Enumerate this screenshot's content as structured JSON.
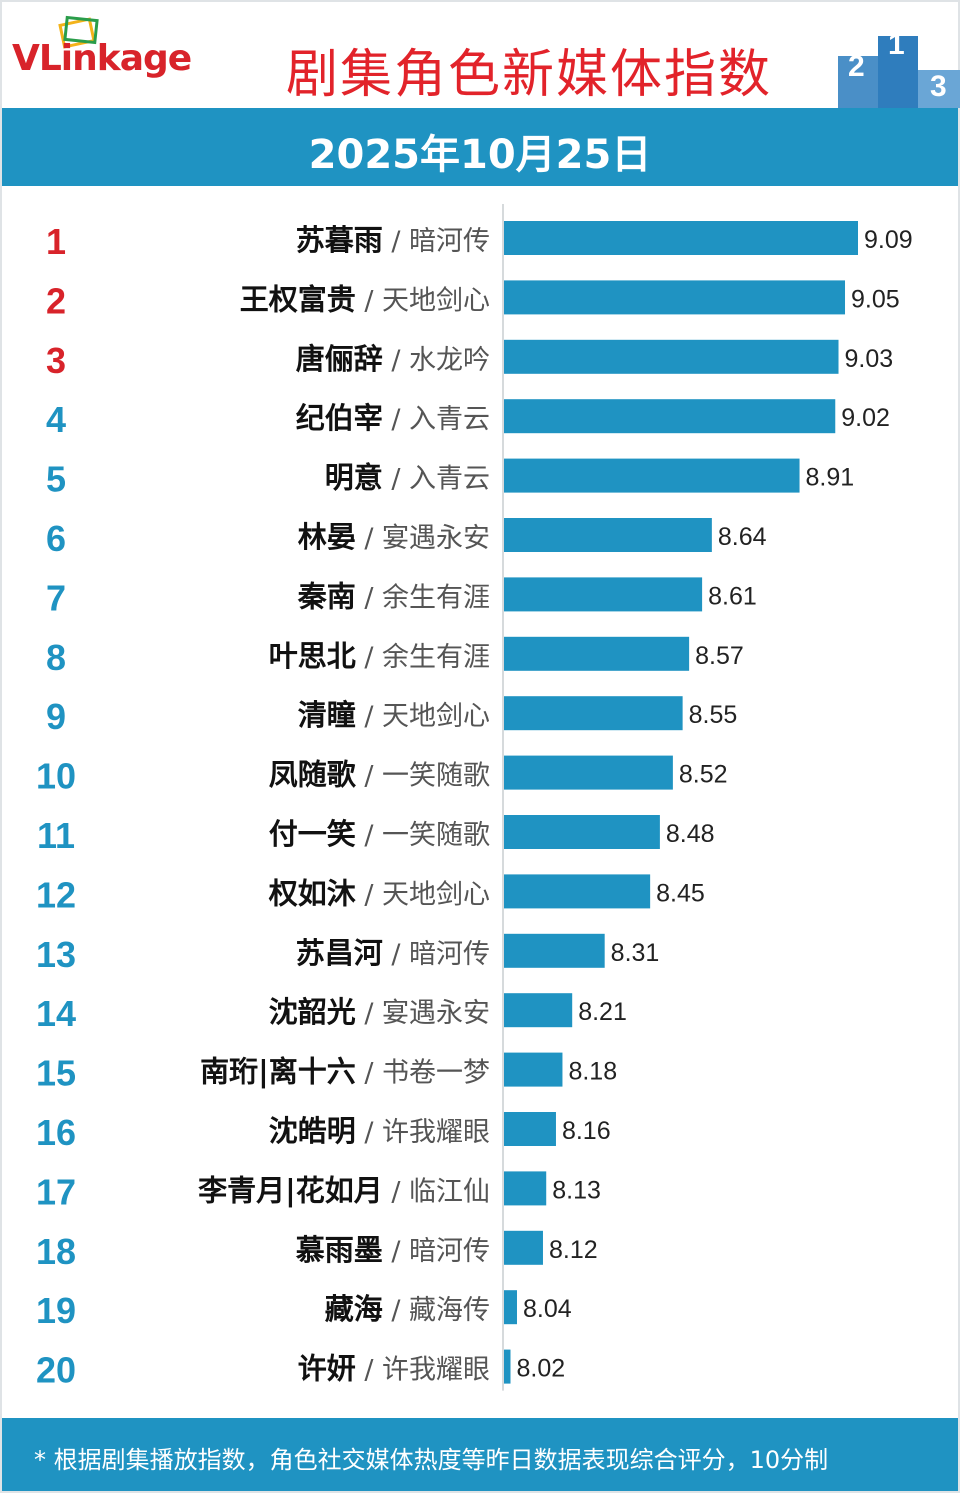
{
  "header": {
    "logo": "VLinkage",
    "title": "剧集角色新媒体指数",
    "date": "2025年10月25日"
  },
  "footer": {
    "note": "* 根据剧集播放指数，角色社交媒体热度等昨日数据表现综合评分，10分制"
  },
  "colors": {
    "bar": "#1f93c2",
    "rank_top3": "#d8232a",
    "rank_rest": "#1f93c2",
    "title": "#e2232a"
  },
  "chart_data": {
    "type": "bar",
    "orientation": "horizontal",
    "xlim": [
      8.0,
      9.15
    ],
    "grid": false,
    "rows": [
      {
        "rank": "1",
        "name": "苏暮雨",
        "drama": "暗河传",
        "value": 9.09
      },
      {
        "rank": "2",
        "name": "王权富贵",
        "drama": "天地剑心",
        "value": 9.05
      },
      {
        "rank": "3",
        "name": "唐俪辞",
        "drama": "水龙吟",
        "value": 9.03
      },
      {
        "rank": "4",
        "name": "纪伯宰",
        "drama": "入青云",
        "value": 9.02
      },
      {
        "rank": "5",
        "name": "明意",
        "drama": "入青云",
        "value": 8.91
      },
      {
        "rank": "6",
        "name": "林晏",
        "drama": "宴遇永安",
        "value": 8.64
      },
      {
        "rank": "7",
        "name": "秦南",
        "drama": "余生有涯",
        "value": 8.61
      },
      {
        "rank": "8",
        "name": "叶思北",
        "drama": "余生有涯",
        "value": 8.57
      },
      {
        "rank": "9",
        "name": "清瞳",
        "drama": "天地剑心",
        "value": 8.55
      },
      {
        "rank": "10",
        "name": "凤随歌",
        "drama": "一笑随歌",
        "value": 8.52
      },
      {
        "rank": "11",
        "name": "付一笑",
        "drama": "一笑随歌",
        "value": 8.48
      },
      {
        "rank": "12",
        "name": "权如沐",
        "drama": "天地剑心",
        "value": 8.45
      },
      {
        "rank": "13",
        "name": "苏昌河",
        "drama": "暗河传",
        "value": 8.31
      },
      {
        "rank": "14",
        "name": "沈韶光",
        "drama": "宴遇永安",
        "value": 8.21
      },
      {
        "rank": "15",
        "name": "南珩|离十六",
        "drama": "书卷一梦",
        "value": 8.18
      },
      {
        "rank": "16",
        "name": "沈皓明",
        "drama": "许我耀眼",
        "value": 8.16
      },
      {
        "rank": "17",
        "name": "李青月|花如月",
        "drama": "临江仙",
        "value": 8.13
      },
      {
        "rank": "18",
        "name": "慕雨墨",
        "drama": "暗河传",
        "value": 8.12
      },
      {
        "rank": "19",
        "name": "藏海",
        "drama": "藏海传",
        "value": 8.04
      },
      {
        "rank": "20",
        "name": "许妍",
        "drama": "许我耀眼",
        "value": 8.02
      }
    ]
  }
}
